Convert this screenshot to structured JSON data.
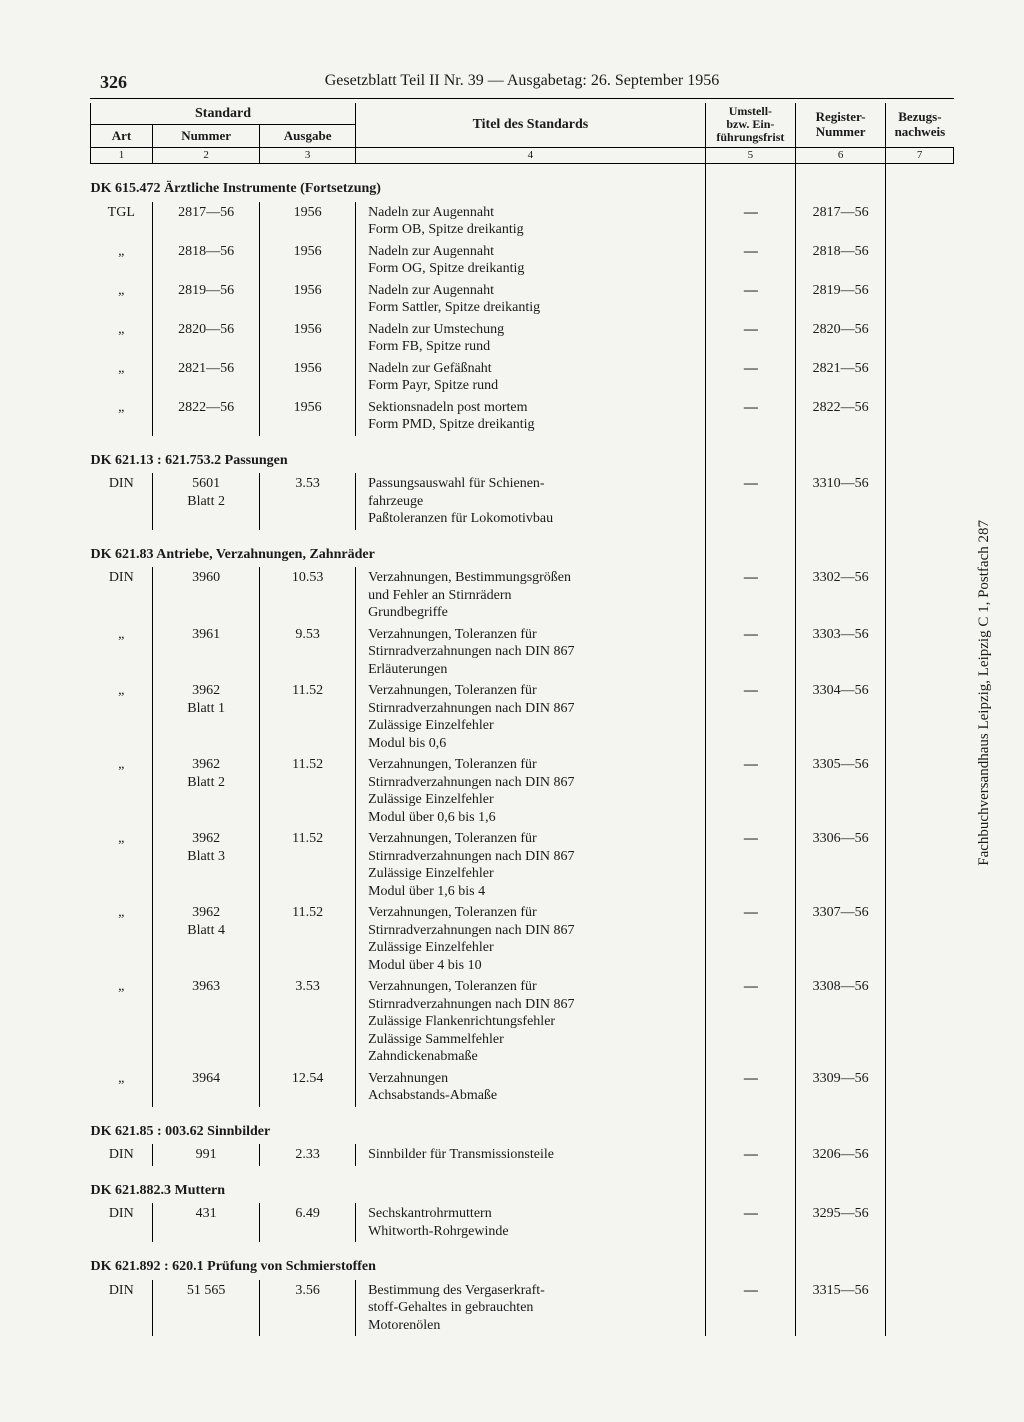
{
  "page_number": "326",
  "running_head": "Gesetzblatt Teil II Nr. 39 — Ausgabetag: 26. September 1956",
  "headers": {
    "standard": "Standard",
    "art": "Art",
    "nummer": "Nummer",
    "ausgabe": "Ausgabe",
    "titel": "Titel des Standards",
    "umstell": "Umstell-\nbzw. Ein-\nführungsfrist",
    "register": "Register-\nNummer",
    "bezug": "Bezugs-\nnachweis",
    "c1": "1",
    "c2": "2",
    "c3": "3",
    "c4": "4",
    "c5": "5",
    "c6": "6",
    "c7": "7"
  },
  "vertical_note": "Fachbuchversandhaus Leipzig, Leipzig C 1, Postfach 287",
  "sections": [
    {
      "heading": "DK 615.472 Ärztliche Instrumente (Fortsetzung)",
      "rows": [
        {
          "art": "TGL",
          "num": "2817—56",
          "ausg": "1956",
          "titel": "Nadeln zur Augennaht\nForm OB, Spitze dreikantig",
          "umst": "—",
          "reg": "2817—56"
        },
        {
          "art": "„",
          "num": "2818—56",
          "ausg": "1956",
          "titel": "Nadeln zur Augennaht\nForm OG, Spitze dreikantig",
          "umst": "—",
          "reg": "2818—56"
        },
        {
          "art": "„",
          "num": "2819—56",
          "ausg": "1956",
          "titel": "Nadeln zur Augennaht\nForm Sattler, Spitze dreikantig",
          "umst": "—",
          "reg": "2819—56"
        },
        {
          "art": "„",
          "num": "2820—56",
          "ausg": "1956",
          "titel": "Nadeln zur Umstechung\nForm FB, Spitze rund",
          "umst": "—",
          "reg": "2820—56"
        },
        {
          "art": "„",
          "num": "2821—56",
          "ausg": "1956",
          "titel": "Nadeln zur Gefäßnaht\nForm Payr, Spitze rund",
          "umst": "—",
          "reg": "2821—56"
        },
        {
          "art": "„",
          "num": "2822—56",
          "ausg": "1956",
          "titel": "Sektionsnadeln post mortem\nForm PMD, Spitze dreikantig",
          "umst": "—",
          "reg": "2822—56"
        }
      ]
    },
    {
      "heading": "DK 621.13 : 621.753.2 Passungen",
      "rows": [
        {
          "art": "DIN",
          "num": "5601\nBlatt 2",
          "ausg": "3.53",
          "titel": "Passungsauswahl für Schienen-\nfahrzeuge\nPaßtoleranzen für Lokomotivbau",
          "umst": "—",
          "reg": "3310—56"
        }
      ]
    },
    {
      "heading": "DK 621.83 Antriebe, Verzahnungen, Zahnräder",
      "rows": [
        {
          "art": "DIN",
          "num": "3960",
          "ausg": "10.53",
          "titel": "Verzahnungen, Bestimmungsgrößen\nund Fehler an Stirnrädern\nGrundbegriffe",
          "umst": "—",
          "reg": "3302—56"
        },
        {
          "art": "„",
          "num": "3961",
          "ausg": "9.53",
          "titel": "Verzahnungen, Toleranzen für\nStirnradverzahnungen nach DIN 867\nErläuterungen",
          "umst": "—",
          "reg": "3303—56"
        },
        {
          "art": "„",
          "num": "3962\nBlatt 1",
          "ausg": "11.52",
          "titel": "Verzahnungen, Toleranzen für\nStirnradverzahnungen nach DIN 867\nZulässige Einzelfehler\nModul bis 0,6",
          "umst": "—",
          "reg": "3304—56"
        },
        {
          "art": "„",
          "num": "3962\nBlatt 2",
          "ausg": "11.52",
          "titel": "Verzahnungen, Toleranzen für\nStirnradverzahnungen nach DIN 867\nZulässige Einzelfehler\nModul über 0,6 bis 1,6",
          "umst": "—",
          "reg": "3305—56"
        },
        {
          "art": "„",
          "num": "3962\nBlatt 3",
          "ausg": "11.52",
          "titel": "Verzahnungen, Toleranzen für\nStirnradverzahnungen nach DIN 867\nZulässige Einzelfehler\nModul über 1,6 bis 4",
          "umst": "—",
          "reg": "3306—56"
        },
        {
          "art": "„",
          "num": "3962\nBlatt 4",
          "ausg": "11.52",
          "titel": "Verzahnungen, Toleranzen für\nStirnradverzahnungen nach DIN 867\nZulässige Einzelfehler\nModul über 4 bis 10",
          "umst": "—",
          "reg": "3307—56"
        },
        {
          "art": "„",
          "num": "3963",
          "ausg": "3.53",
          "titel": "Verzahnungen, Toleranzen für\nStirnradverzahnungen nach DIN 867\nZulässige Flankenrichtungsfehler\nZulässige Sammelfehler\nZahndickenabmaße",
          "umst": "—",
          "reg": "3308—56"
        },
        {
          "art": "„",
          "num": "3964",
          "ausg": "12.54",
          "titel": "Verzahnungen\nAchsabstands-Abmaße",
          "umst": "—",
          "reg": "3309—56"
        }
      ]
    },
    {
      "heading": "DK 621.85 : 003.62 Sinnbilder",
      "rows": [
        {
          "art": "DIN",
          "num": "991",
          "ausg": "2.33",
          "titel": "Sinnbilder für Transmissionsteile",
          "umst": "—",
          "reg": "3206—56"
        }
      ]
    },
    {
      "heading": "DK 621.882.3 Muttern",
      "rows": [
        {
          "art": "DIN",
          "num": "431",
          "ausg": "6.49",
          "titel": "Sechskantrohrmuttern\nWhitworth-Rohrgewinde",
          "umst": "—",
          "reg": "3295—56"
        }
      ]
    },
    {
      "heading": "DK 621.892 : 620.1 Prüfung von Schmierstoffen",
      "rows": [
        {
          "art": "DIN",
          "num": "51 565",
          "ausg": "3.56",
          "titel": "Bestimmung des Vergaserkraft-\nstoff-Gehaltes in gebrauchten\nMotorenölen",
          "umst": "—",
          "reg": "3315—56"
        }
      ]
    }
  ]
}
